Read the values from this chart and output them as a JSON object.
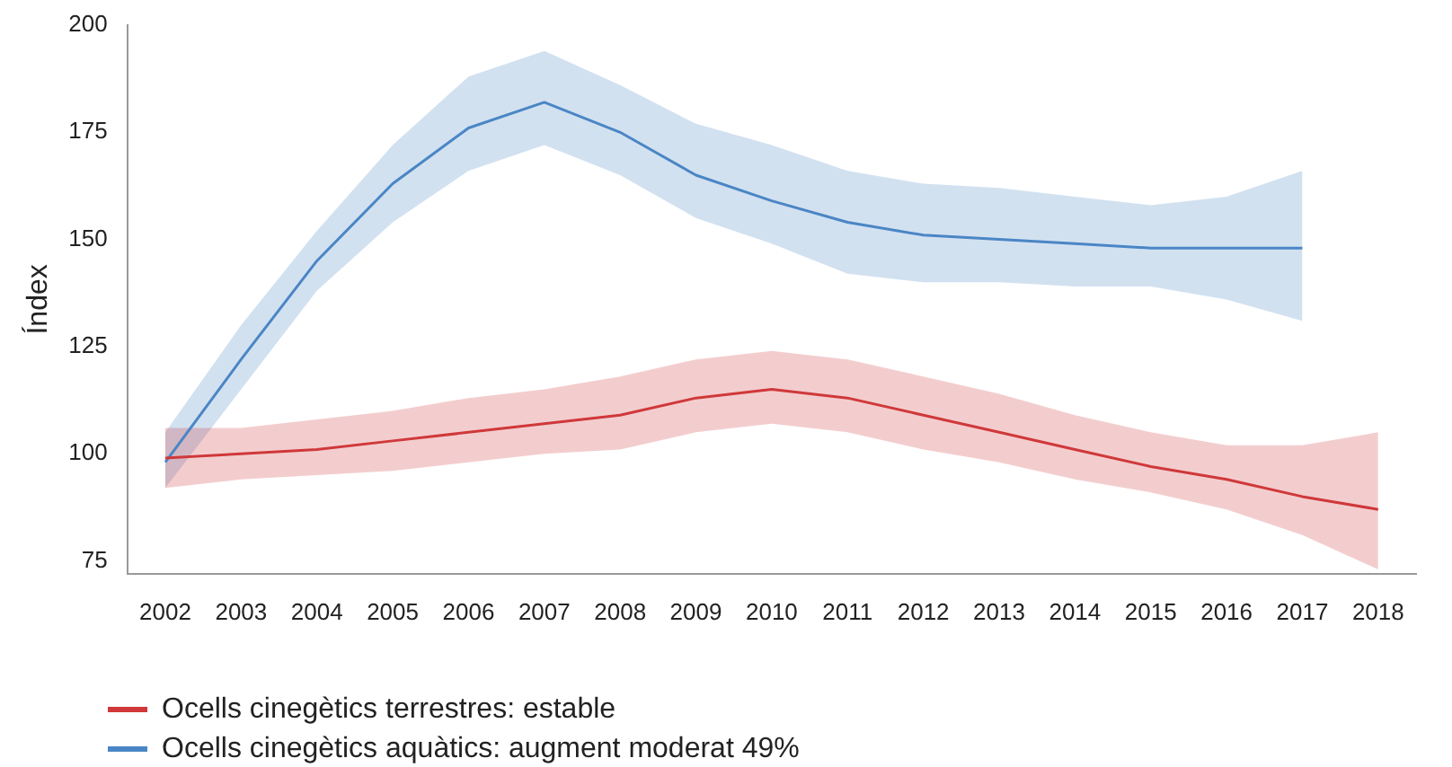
{
  "chart_data": {
    "type": "line",
    "ylabel": "Índex",
    "categories": [
      "2002",
      "2003",
      "2004",
      "2005",
      "2006",
      "2007",
      "2008",
      "2009",
      "2010",
      "2011",
      "2012",
      "2013",
      "2014",
      "2015",
      "2016",
      "2017",
      "2018"
    ],
    "series": [
      {
        "name": "Ocells cinegètics terrestres: estable",
        "color": "#d0383a",
        "values": [
          99,
          100,
          101,
          103,
          105,
          107,
          109,
          113,
          115,
          113,
          109,
          105,
          101,
          97,
          94,
          90,
          87
        ],
        "lower": [
          92,
          94,
          95,
          96,
          98,
          100,
          101,
          105,
          107,
          105,
          101,
          98,
          94,
          91,
          87,
          81,
          73
        ],
        "upper": [
          106,
          106,
          108,
          110,
          113,
          115,
          118,
          122,
          124,
          122,
          118,
          114,
          109,
          105,
          102,
          102,
          105
        ]
      },
      {
        "name": "Ocells cinegètics aquàtics: augment moderat 49%",
        "color": "#4a86c5",
        "values": [
          98,
          122,
          145,
          163,
          176,
          182,
          175,
          165,
          159,
          154,
          151,
          150,
          149,
          148,
          148,
          148,
          null
        ],
        "lower": [
          92,
          115,
          138,
          154,
          166,
          172,
          165,
          155,
          149,
          142,
          140,
          140,
          139,
          139,
          136,
          131,
          null
        ],
        "upper": [
          105,
          130,
          152,
          172,
          188,
          194,
          186,
          177,
          172,
          166,
          163,
          162,
          160,
          158,
          160,
          166,
          null
        ]
      }
    ],
    "ylim": [
      72,
      200
    ],
    "yticks": [
      75,
      100,
      125,
      150,
      175,
      200
    ],
    "grid": false,
    "legend": "bottom left",
    "marker": "none",
    "line_style": "solid"
  }
}
